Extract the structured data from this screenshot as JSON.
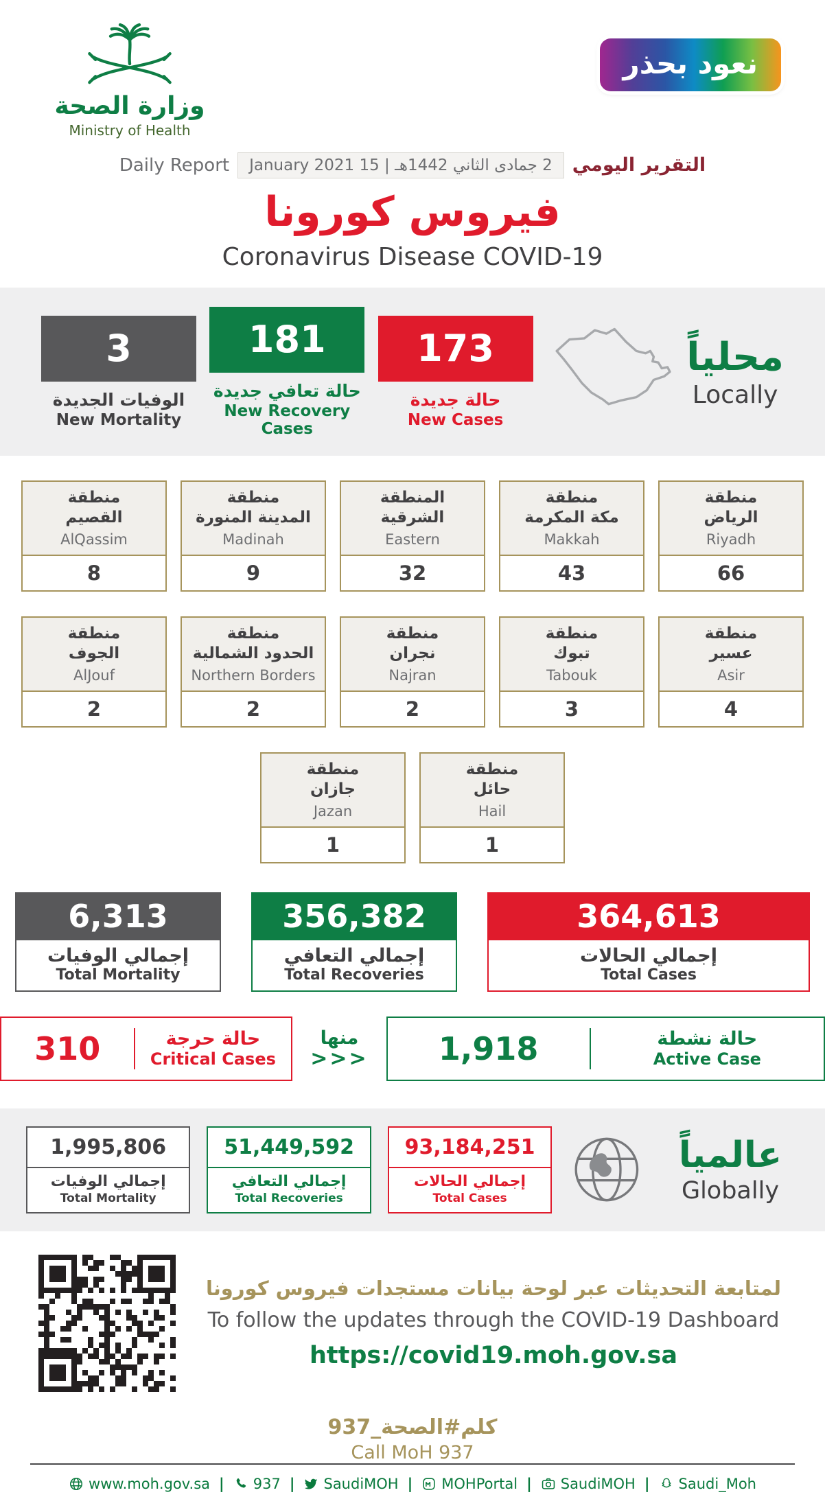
{
  "colors": {
    "green": "#0e7e45",
    "red": "#e01b2c",
    "gray": "#58585a",
    "gold": "#a6945c"
  },
  "header": {
    "ministry_name_ar": "وزارة الصحة",
    "ministry_name_en": "Ministry of Health",
    "badge_text": "نعود بحذر",
    "daily_report_ar": "التقرير اليومي",
    "daily_report_en": "Daily Report",
    "report_date": "2 جمادى الثاني 1442هـ | 15 January 2021",
    "title_ar": "فيروس كورونا",
    "title_en": "Coronavirus Disease COVID-19"
  },
  "locally": {
    "heading_ar": "محلياً",
    "heading_en": "Locally",
    "new_cases": {
      "value": "173",
      "label_ar": "حالة جديدة",
      "label_en": "New Cases"
    },
    "new_recoveries": {
      "value": "181",
      "label_ar": "حالة تعافي جديدة",
      "label_en": "New Recovery Cases"
    },
    "new_mortality": {
      "value": "3",
      "label_ar": "الوفيات الجديدة",
      "label_en": "New Mortality"
    }
  },
  "regions": {
    "row1": [
      {
        "name_ar": "منطقة\nالرياض",
        "name_en": "Riyadh",
        "value": "66"
      },
      {
        "name_ar": "منطقة\nمكة المكرمة",
        "name_en": "Makkah",
        "value": "43"
      },
      {
        "name_ar": "المنطقة\nالشرقية",
        "name_en": "Eastern",
        "value": "32"
      },
      {
        "name_ar": "منطقة\nالمدينة المنورة",
        "name_en": "Madinah",
        "value": "9"
      },
      {
        "name_ar": "منطقة\nالقصيم",
        "name_en": "AlQassim",
        "value": "8"
      }
    ],
    "row2": [
      {
        "name_ar": "منطقة\nعسير",
        "name_en": "Asir",
        "value": "4"
      },
      {
        "name_ar": "منطقة\nتبوك",
        "name_en": "Tabouk",
        "value": "3"
      },
      {
        "name_ar": "منطقة\nنجران",
        "name_en": "Najran",
        "value": "2"
      },
      {
        "name_ar": "منطقة\nالحدود الشمالية",
        "name_en": "Northern Borders",
        "value": "2"
      },
      {
        "name_ar": "منطقة\nالجوف",
        "name_en": "AlJouf",
        "value": "2"
      }
    ],
    "row3": [
      {
        "name_ar": "منطقة\nحائل",
        "name_en": "Hail",
        "value": "1"
      },
      {
        "name_ar": "منطقة\nجازان",
        "name_en": "Jazan",
        "value": "1"
      }
    ]
  },
  "totals": {
    "cases": {
      "value": "364,613",
      "label_ar": "إجمالي الحالات",
      "label_en": "Total Cases"
    },
    "recoveries": {
      "value": "356,382",
      "label_ar": "إجمالي التعافي",
      "label_en": "Total Recoveries"
    },
    "mortality": {
      "value": "6,313",
      "label_ar": "إجمالي الوفيات",
      "label_en": "Total Mortality"
    }
  },
  "active": {
    "active_case": {
      "value": "1,918",
      "label_ar": "حالة نشطة",
      "label_en": "Active Case"
    },
    "of_which_ar": "منها",
    "arrows": "<<<",
    "critical_cases": {
      "value": "310",
      "label_ar": "حالة حرجة",
      "label_en": "Critical Cases"
    }
  },
  "globally": {
    "heading_ar": "عالمياً",
    "heading_en": "Globally",
    "cases": {
      "value": "93,184,251",
      "label_ar": "إجمالي الحالات",
      "label_en": "Total Cases"
    },
    "recoveries": {
      "value": "51,449,592",
      "label_ar": "إجمالي التعافي",
      "label_en": "Total Recoveries"
    },
    "mortality": {
      "value": "1,995,806",
      "label_ar": "إجمالي الوفيات",
      "label_en": "Total Mortality"
    }
  },
  "dashboard": {
    "line_ar": "لمتابعة التحديثات عبر لوحة بيانات مستجدات فيروس كورونا",
    "line_en": "To follow the updates through the COVID-19 Dashboard",
    "url": "https://covid19.moh.gov.sa"
  },
  "call": {
    "ar": "كلم#الصحة_937",
    "en": "Call MoH 937"
  },
  "footer": {
    "separator": "|",
    "items": [
      {
        "icon": "globe-icon",
        "label": "www.moh.gov.sa"
      },
      {
        "icon": "phone-icon",
        "label": "937"
      },
      {
        "icon": "twitter-icon",
        "label": "SaudiMOH"
      },
      {
        "icon": "app-icon",
        "label": "MOHPortal"
      },
      {
        "icon": "camera-icon",
        "label": "SaudiMOH"
      },
      {
        "icon": "snapchat-icon",
        "label": "Saudi_Moh"
      }
    ]
  }
}
